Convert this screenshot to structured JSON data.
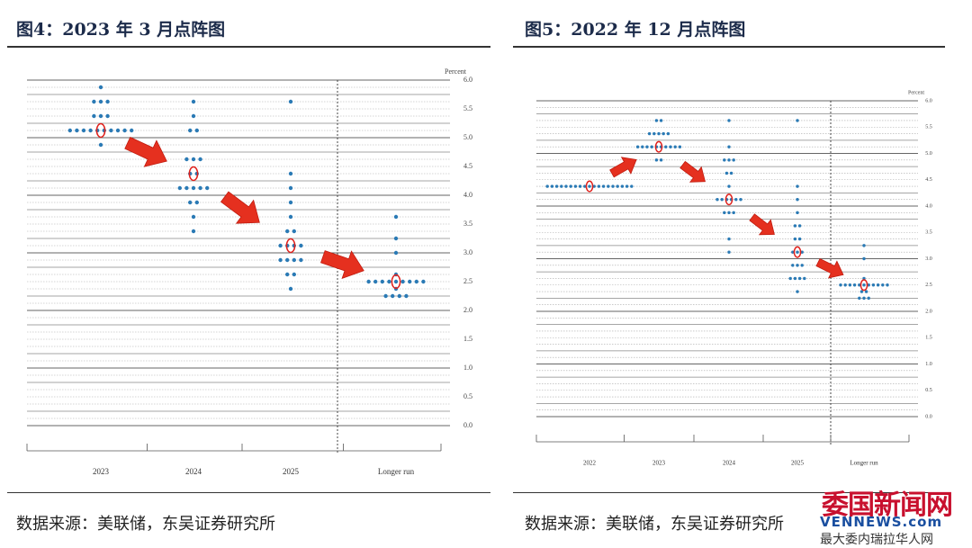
{
  "chart_data": [
    {
      "type": "dot-plot",
      "title": "图4：2023 年 3 月点阵图",
      "y_label": "Percent",
      "color": "#2a7ab5",
      "median_color": "#e0201b",
      "categories": [
        "2023",
        "2024",
        "2025",
        "Longer run"
      ],
      "ylim": [
        0,
        6
      ],
      "yticks": [
        {
          "value": 0,
          "label": "0.0"
        },
        {
          "value": 0.5,
          "label": "0.5"
        },
        {
          "value": 1,
          "label": "1.0"
        },
        {
          "value": 1.5,
          "label": "1.5"
        },
        {
          "value": 2,
          "label": "2.0"
        },
        {
          "value": 2.5,
          "label": "2.5"
        },
        {
          "value": 3,
          "label": "3.0"
        },
        {
          "value": 3.5,
          "label": "3.5"
        },
        {
          "value": 4,
          "label": "4.0"
        },
        {
          "value": 4.5,
          "label": "4.5"
        },
        {
          "value": 5,
          "label": "5.0"
        },
        {
          "value": 5.5,
          "label": "5.5"
        },
        {
          "value": 6,
          "label": "6.0"
        }
      ],
      "dots": [
        {
          "rates": [
            5.875,
            5.625,
            5.375,
            5.125,
            4.875
          ],
          "counts": [
            1,
            3,
            3,
            10,
            1
          ]
        },
        {
          "rates": [
            5.625,
            5.375,
            5.125,
            4.625,
            4.375,
            4.125,
            3.875,
            3.625,
            3.375
          ],
          "counts": [
            1,
            1,
            2,
            3,
            2,
            5,
            2,
            1,
            1
          ]
        },
        {
          "rates": [
            5.625,
            4.375,
            4.125,
            3.875,
            3.625,
            3.375,
            3.125,
            2.875,
            2.625,
            2.375
          ],
          "counts": [
            1,
            1,
            1,
            1,
            1,
            2,
            4,
            4,
            2,
            1
          ]
        },
        {
          "rates": [
            3.625,
            3.25,
            3.0,
            2.625,
            2.5,
            2.375,
            2.25
          ],
          "counts": [
            1,
            1,
            1,
            1,
            9,
            1,
            4
          ]
        }
      ],
      "median": [
        5.125,
        4.375,
        3.125,
        2.5
      ]
    },
    {
      "type": "dot-plot",
      "title": "图5：2022 年 12 月点阵图",
      "y_label": "Percent",
      "color": "#2a7ab5",
      "median_color": "#e0201b",
      "categories": [
        "2022",
        "2023",
        "2024",
        "2025",
        "Longer run"
      ],
      "ylim": [
        0,
        6
      ],
      "yticks": [
        {
          "value": 0,
          "label": "0.0"
        },
        {
          "value": 0.5,
          "label": "0.5"
        },
        {
          "value": 1,
          "label": "1.0"
        },
        {
          "value": 1.5,
          "label": "1.5"
        },
        {
          "value": 2,
          "label": "2.0"
        },
        {
          "value": 2.5,
          "label": "2.5"
        },
        {
          "value": 3,
          "label": "3.0"
        },
        {
          "value": 3.5,
          "label": "3.5"
        },
        {
          "value": 4,
          "label": "4.0"
        },
        {
          "value": 4.5,
          "label": "4.5"
        },
        {
          "value": 5,
          "label": "5.0"
        },
        {
          "value": 5.5,
          "label": "5.5"
        },
        {
          "value": 6,
          "label": "6.0"
        }
      ],
      "dots": [
        {
          "rates": [
            4.375
          ],
          "counts": [
            19
          ]
        },
        {
          "rates": [
            5.625,
            5.375,
            5.125,
            4.875
          ],
          "counts": [
            2,
            5,
            10,
            2
          ]
        },
        {
          "rates": [
            5.625,
            5.125,
            4.875,
            4.625,
            4.375,
            4.125,
            3.875,
            3.375,
            3.125
          ],
          "counts": [
            1,
            1,
            3,
            2,
            1,
            6,
            3,
            1,
            1
          ]
        },
        {
          "rates": [
            5.625,
            4.375,
            4.125,
            3.875,
            3.625,
            3.375,
            3.125,
            2.875,
            2.625,
            2.375
          ],
          "counts": [
            1,
            1,
            1,
            1,
            2,
            2,
            3,
            3,
            4,
            1
          ]
        },
        {
          "rates": [
            3.25,
            3.0,
            2.625,
            2.5,
            2.375,
            2.25
          ],
          "counts": [
            1,
            1,
            1,
            11,
            2,
            3
          ]
        }
      ],
      "median": [
        4.375,
        5.125,
        4.125,
        3.125,
        2.5
      ]
    }
  ],
  "source": [
    "数据来源：美联储，东吴证券研究所",
    "数据来源：美联储，东吴证券研究所"
  ],
  "watermark": {
    "name": "委国新闻网",
    "url": "VENNEWS.com",
    "slogan": "最大委内瑞拉华人网"
  }
}
